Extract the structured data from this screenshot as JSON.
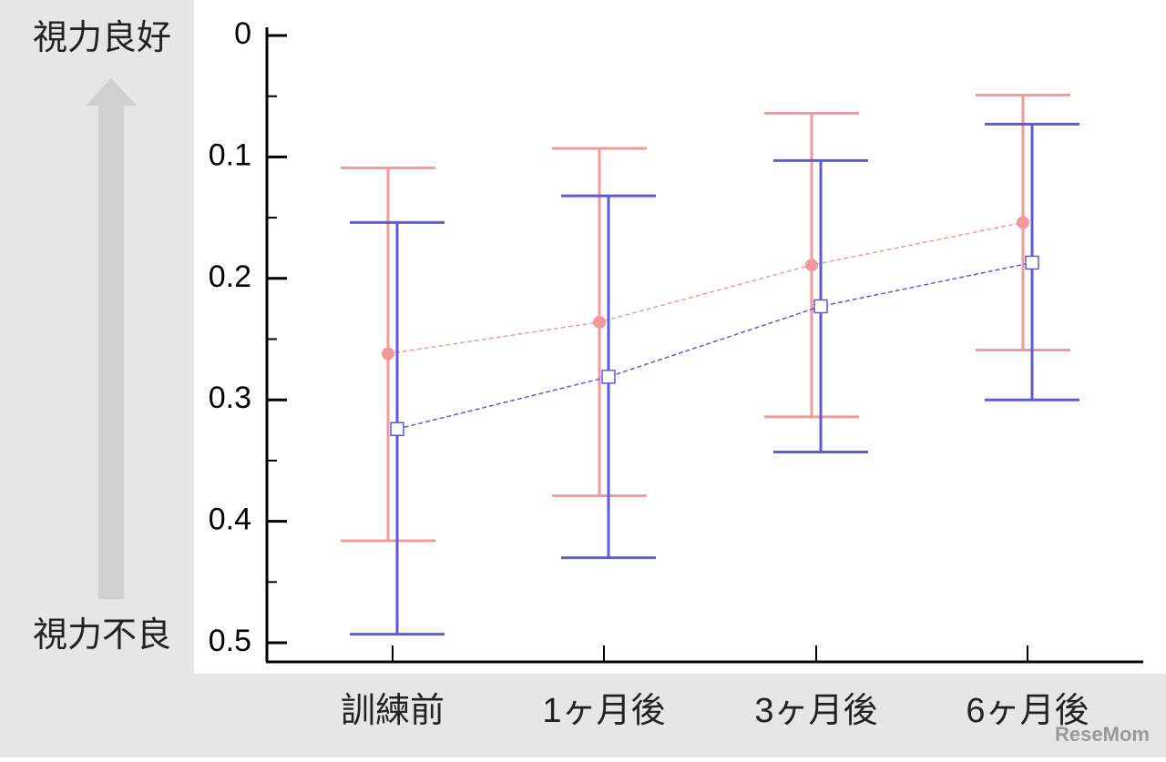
{
  "chart_data": {
    "type": "errorbar-line",
    "top_label": "視力良好",
    "bottom_label": "視力不良",
    "categories": [
      "訓練前",
      "1ヶ月後",
      "3ヶ月後",
      "6ヶ月後"
    ],
    "series": [
      {
        "color": "#f29a9a",
        "marker": "circle",
        "values": [
          0.262,
          0.236,
          0.189,
          0.154
        ],
        "lower": [
          0.109,
          0.093,
          0.064,
          0.049
        ],
        "upper": [
          0.416,
          0.379,
          0.314,
          0.259
        ]
      },
      {
        "color": "#5b5bdb",
        "marker": "square",
        "values": [
          0.324,
          0.281,
          0.223,
          0.187
        ],
        "lower": [
          0.154,
          0.132,
          0.103,
          0.073
        ],
        "upper": [
          0.493,
          0.43,
          0.343,
          0.3
        ]
      }
    ],
    "ylim": [
      0,
      0.5
    ],
    "y_inverted": true,
    "yticks": [
      0,
      0.1,
      0.2,
      0.3,
      0.4,
      0.5
    ],
    "yminorticks": [
      0.05,
      0.15,
      0.25,
      0.35,
      0.45
    ],
    "watermark": "ReseMom"
  }
}
